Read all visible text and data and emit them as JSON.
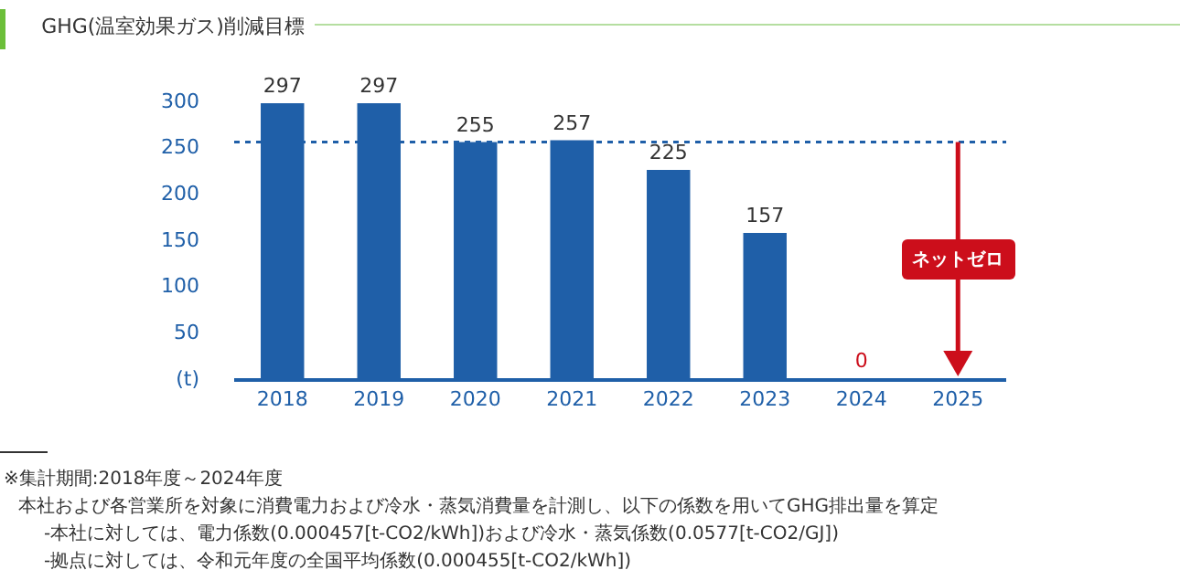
{
  "chart_data": {
    "type": "bar",
    "title": "GHG(温室効果ガス)削減目標",
    "categories": [
      "2018",
      "2019",
      "2020",
      "2021",
      "2022",
      "2023",
      "2024",
      "2025"
    ],
    "values": [
      297,
      297,
      255,
      257,
      225,
      157,
      0,
      null
    ],
    "colors": [
      "#1f5fa8",
      "#1f5fa8",
      "#1f5fa8",
      "#1f5fa8",
      "#1f5fa8",
      "#1f5fa8",
      "#cc0e1b",
      "#cc0e1b"
    ],
    "data_labels": true,
    "ylim": [
      0,
      300
    ],
    "yticks": [
      {
        "value": 0,
        "label": "(t)"
      },
      50,
      100,
      150,
      200,
      250,
      300
    ],
    "ref_lines": [
      {
        "axis": "y",
        "value": 255,
        "color": "#1f5fa8",
        "line_style": "dotted"
      }
    ],
    "annotations": [
      "ネットゼロ",
      "※集計期間:2018年度～2024年度",
      "本社および各営業所を対象に消費電力および冷水・蒸気消費量を計測し、以下の係数を用いてGHG排出量を算定",
      "-本社に対しては、電力係数(0.000457[t-CO2/kWh])および冷水・蒸気係数(0.0577[t-CO2/GJ])",
      "-拠点に対しては、令和元年度の全国平均係数(0.000455[t-CO2/kWh])"
    ]
  }
}
